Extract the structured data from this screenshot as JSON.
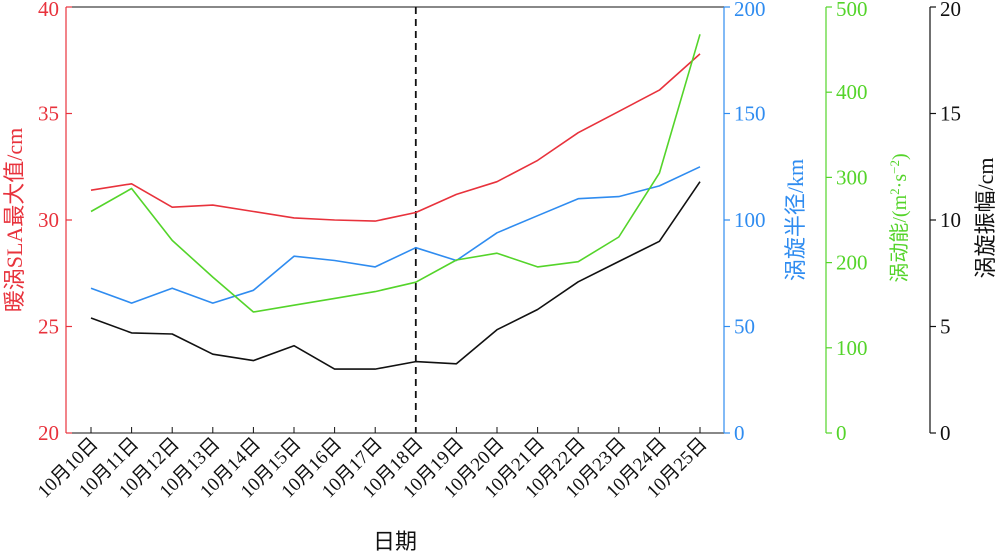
{
  "chart_data": {
    "type": "line",
    "categories": [
      "10月10日",
      "10月11日",
      "10月12日",
      "10月13日",
      "10月14日",
      "10月15日",
      "10月16日",
      "10月17日",
      "10月18日",
      "10月19日",
      "10月20日",
      "10月21日",
      "10月22日",
      "10月23日",
      "10月24日",
      "10月25日"
    ],
    "xlabel": "日期",
    "marker_line_category": "10月18日",
    "grid": false,
    "axes": [
      {
        "id": "sla",
        "label": "暖涡SLA最大值/cm",
        "color": "#e8323c",
        "range": [
          20,
          40
        ],
        "ticks": [
          "20",
          "25",
          "30",
          "35",
          "40"
        ],
        "tick_values": [
          20,
          25,
          30,
          35,
          40
        ]
      },
      {
        "id": "radius",
        "label": "涡旋半径/km",
        "color": "#2f8cf0",
        "range": [
          0,
          200
        ],
        "ticks": [
          "0",
          "50",
          "100",
          "150",
          "200"
        ],
        "tick_values": [
          0,
          50,
          100,
          150,
          200
        ]
      },
      {
        "id": "energy",
        "label_main": "涡动能/(m",
        "label_sup1": "2",
        "label_mid": "·s",
        "label_sup2": "−2",
        "label_end": ")",
        "color": "#54d42a",
        "range": [
          0,
          500
        ],
        "ticks": [
          "0",
          "100",
          "200",
          "300",
          "400",
          "500"
        ],
        "tick_values": [
          0,
          100,
          200,
          300,
          400,
          500
        ]
      },
      {
        "id": "amplitude",
        "label": "涡旋振幅/cm",
        "color": "#111111",
        "range": [
          0,
          20
        ],
        "ticks": [
          "0",
          "5",
          "10",
          "15",
          "20"
        ],
        "tick_values": [
          0,
          5,
          10,
          15,
          20
        ]
      }
    ],
    "series": [
      {
        "axis": "sla",
        "color": "#e8323c",
        "values": [
          31.4,
          31.7,
          30.6,
          30.7,
          30.4,
          30.1,
          30.0,
          29.95,
          30.35,
          31.2,
          31.8,
          32.8,
          34.1,
          35.1,
          36.1,
          37.8
        ]
      },
      {
        "axis": "radius",
        "color": "#2f8cf0",
        "values": [
          68,
          61,
          68,
          61,
          67,
          83,
          81,
          78,
          87,
          81,
          94,
          102,
          110,
          111,
          116,
          125
        ]
      },
      {
        "axis": "energy",
        "color": "#54d42a",
        "values": [
          260,
          287,
          226,
          183,
          142,
          150,
          158,
          166,
          177,
          203,
          211,
          195,
          201,
          230,
          305,
          468
        ]
      },
      {
        "axis": "amplitude",
        "color": "#111111",
        "values": [
          5.4,
          4.7,
          4.65,
          3.7,
          3.4,
          4.1,
          3.0,
          3.0,
          3.35,
          3.25,
          4.85,
          5.8,
          7.1,
          8.05,
          9.0,
          11.8
        ]
      }
    ]
  }
}
